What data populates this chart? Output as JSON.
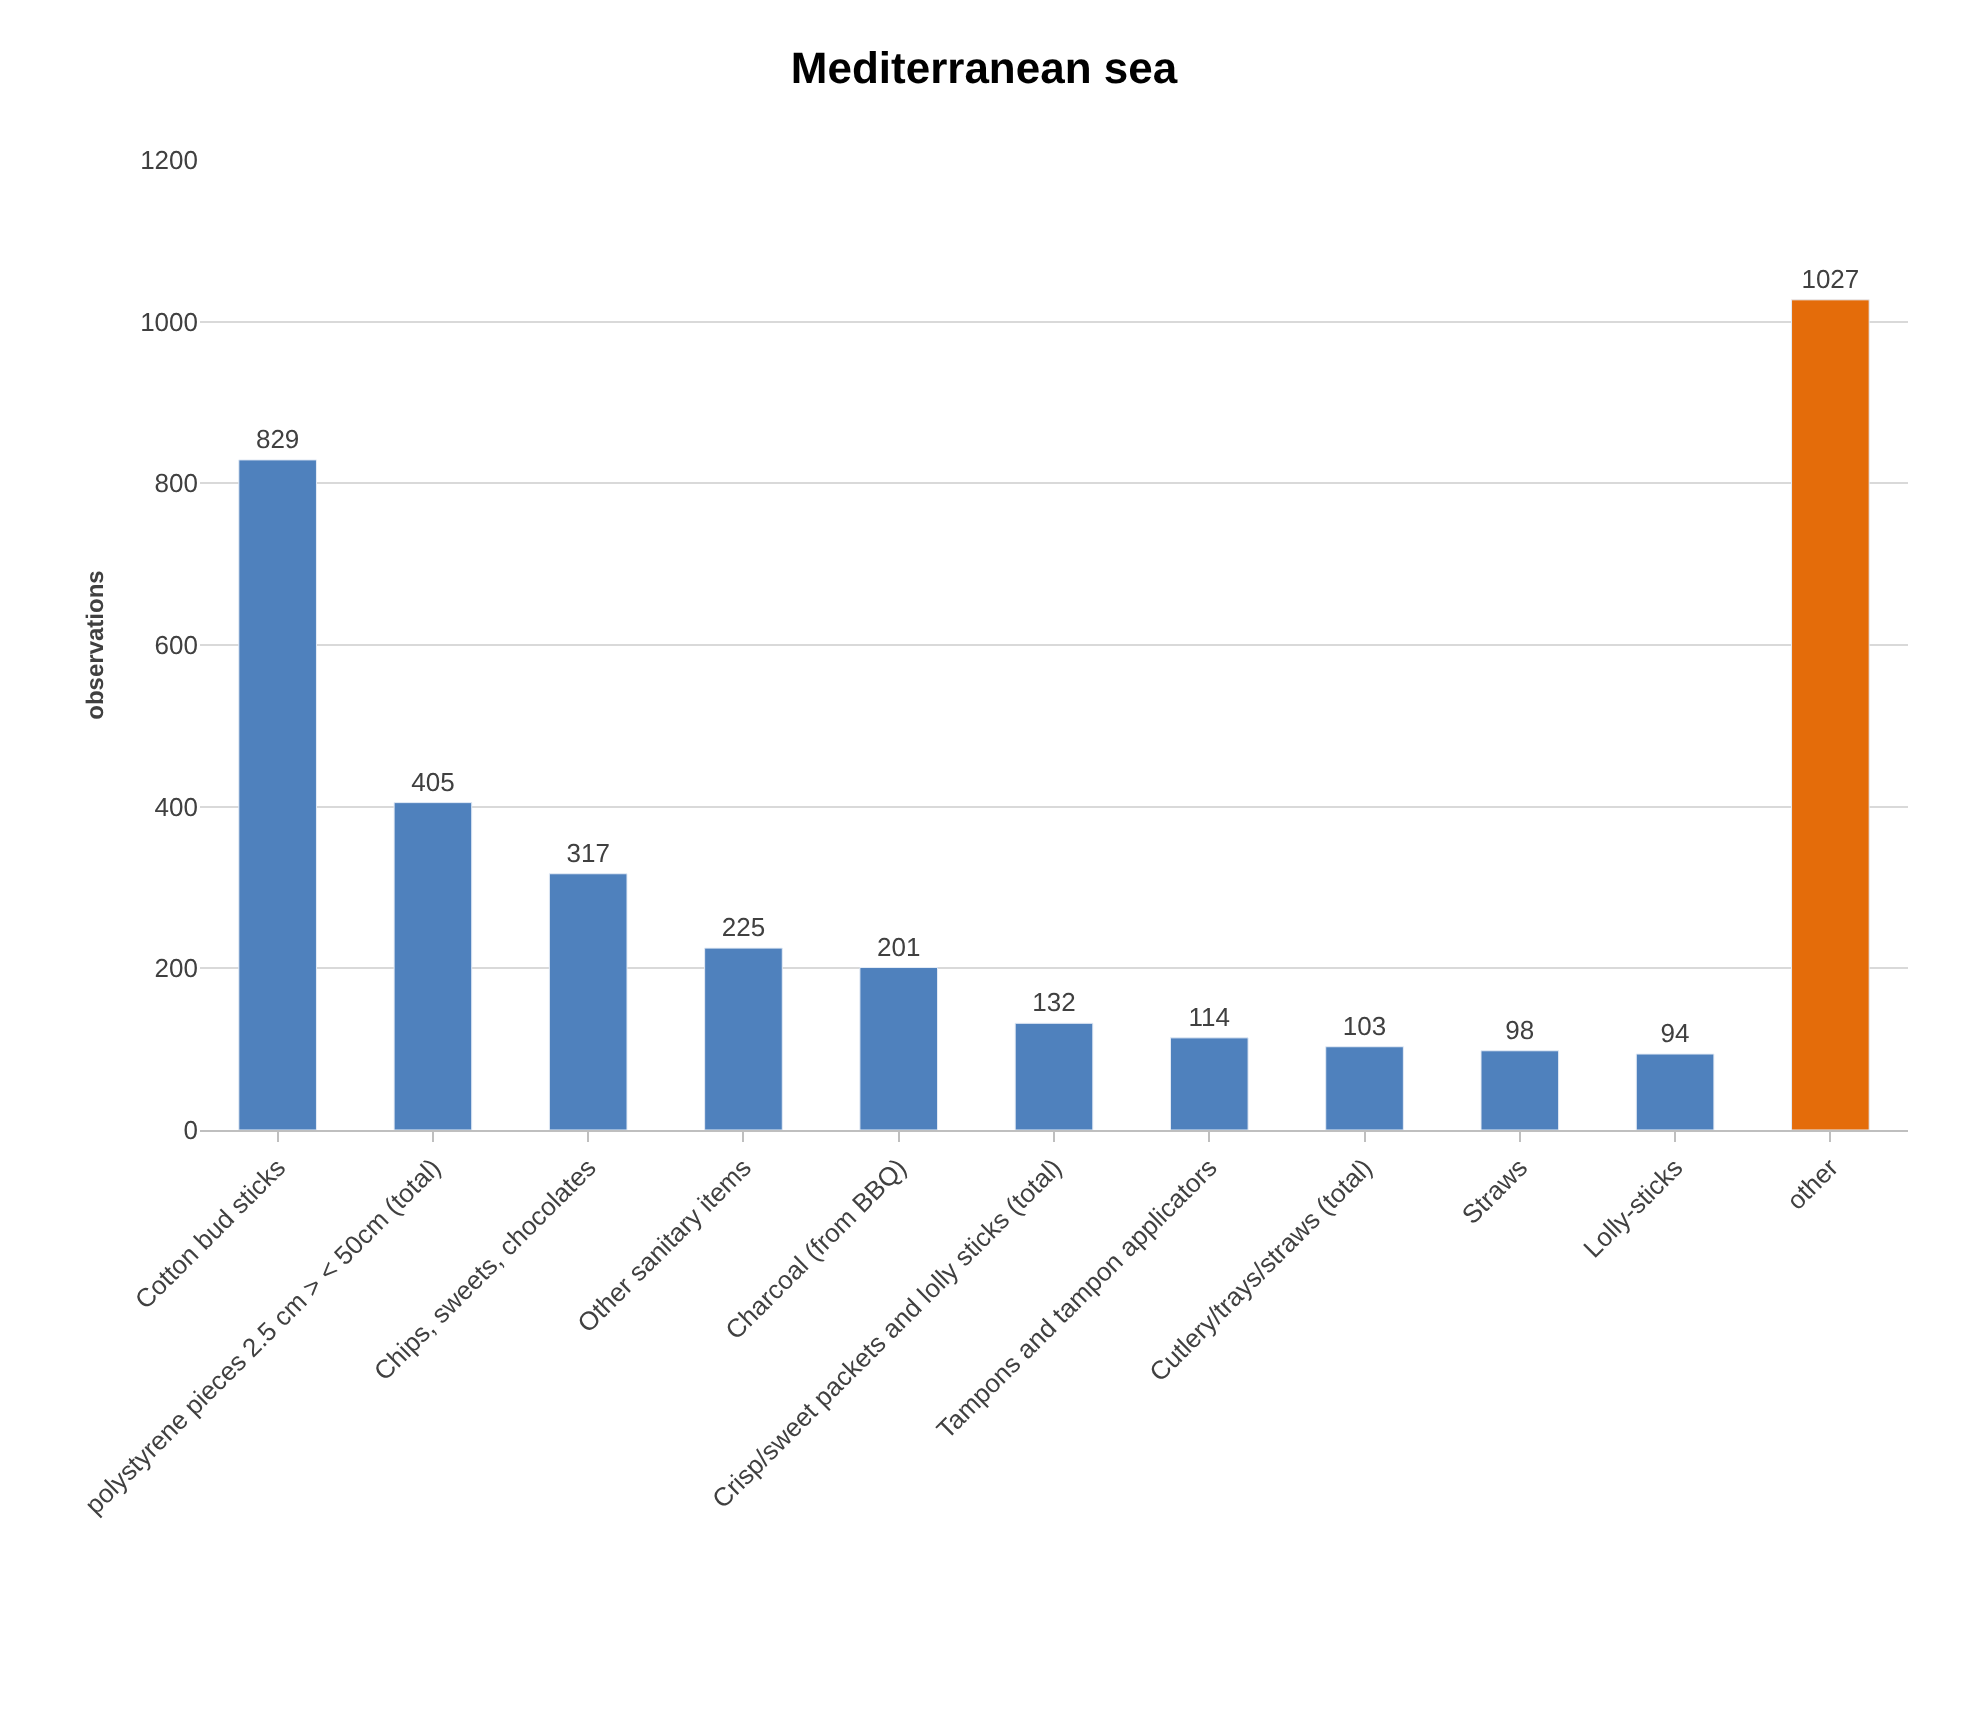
{
  "chart_data": {
    "type": "bar",
    "title": "Mediterranean sea",
    "ylabel": "observations",
    "categories": [
      "Cotton bud sticks",
      "polystyrene pieces 2.5 cm > < 50cm (total)",
      "Chips, sweets, chocolates",
      "Other sanitary items",
      "Charcoal (from BBQ)",
      "Crisp/sweet packets and lolly sticks (total)",
      "Tampons and tampon applicators",
      "Cutlery/trays/straws (total)",
      "Straws",
      "Lolly-sticks",
      "other"
    ],
    "values": [
      829,
      405,
      317,
      225,
      201,
      132,
      114,
      103,
      98,
      94,
      1027
    ],
    "colors": [
      "#4f81bd",
      "#4f81bd",
      "#4f81bd",
      "#4f81bd",
      "#4f81bd",
      "#4f81bd",
      "#4f81bd",
      "#4f81bd",
      "#4f81bd",
      "#4f81bd",
      "#e46c0a"
    ],
    "ylim": [
      0,
      1200
    ],
    "yticks": [
      0,
      200,
      400,
      600,
      800,
      1000,
      1200
    ],
    "grid": "y",
    "data_labels": true
  }
}
